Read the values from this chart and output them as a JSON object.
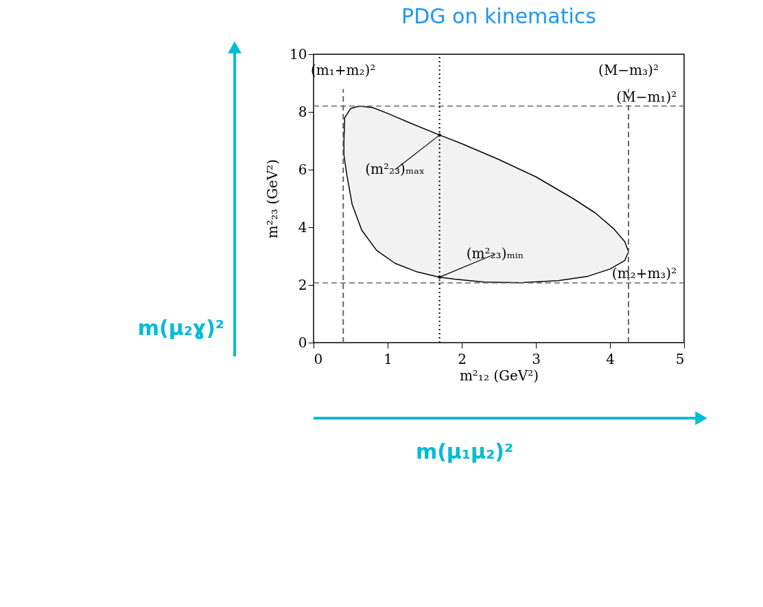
{
  "chart_data": {
    "type": "area",
    "title": "PDG on kinematics",
    "xlabel": "m²₁₂ (GeV²)",
    "ylabel": "m²₂₃ (GeV²)",
    "series": [
      {
        "color": "#f2f2f2",
        "x": [
          0.41,
          0.42,
          0.5,
          0.62,
          0.8,
          1.0,
          1.3,
          1.7,
          2.0,
          2.5,
          3.0,
          3.5,
          3.8,
          4.05,
          4.2,
          4.25,
          4.2,
          4.0,
          3.7,
          3.3,
          2.8,
          2.3,
          1.9,
          1.7,
          1.4,
          1.1,
          0.85,
          0.65,
          0.52,
          0.45,
          0.41,
          0.41
        ],
        "values": [
          7.0,
          7.8,
          8.12,
          8.2,
          8.15,
          7.95,
          7.62,
          7.2,
          6.9,
          6.35,
          5.75,
          5.0,
          4.5,
          3.95,
          3.5,
          3.15,
          2.85,
          2.55,
          2.3,
          2.15,
          2.08,
          2.1,
          2.2,
          2.27,
          2.45,
          2.75,
          3.2,
          3.9,
          4.8,
          5.8,
          6.5,
          7.0
        ]
      }
    ],
    "xlim": [
      0,
      5
    ],
    "xticks": [
      0,
      1,
      2,
      3,
      4,
      5
    ],
    "ylim": [
      0,
      10
    ],
    "yticks": [
      0,
      2,
      4,
      6,
      8,
      10
    ],
    "grid": false,
    "marker": "none",
    "line_style": "solid",
    "ref_lines": [
      {
        "axis": "y",
        "value": 8.2,
        "label": "(M−m₁)²",
        "color": "#666666",
        "line_style": "dashed"
      },
      {
        "axis": "y",
        "value": 2.07,
        "label": "(m₂+m₃)²",
        "color": "#666666",
        "line_style": "dashed"
      },
      {
        "axis": "x",
        "value": 0.4,
        "label": "(m₁+m₂)²",
        "color": "#666666",
        "line_style": "dashed"
      },
      {
        "axis": "x",
        "value": 4.25,
        "label": "(M−m₃)²",
        "color": "#666666",
        "line_style": "dashed"
      },
      {
        "axis": "x",
        "value": 1.7,
        "color": "#000000",
        "line_style": "dotted"
      }
    ],
    "annotations": [
      {
        "text": "(m²₂₃)ₘₐₓ",
        "x": 1.7,
        "y": 7.2
      },
      {
        "text": "(m²₂₃)ₘᵢₙ",
        "x": 1.7,
        "y": 2.27
      },
      "m(μ₂ɣ)²",
      "m(μ₁μ₂)²"
    ]
  }
}
